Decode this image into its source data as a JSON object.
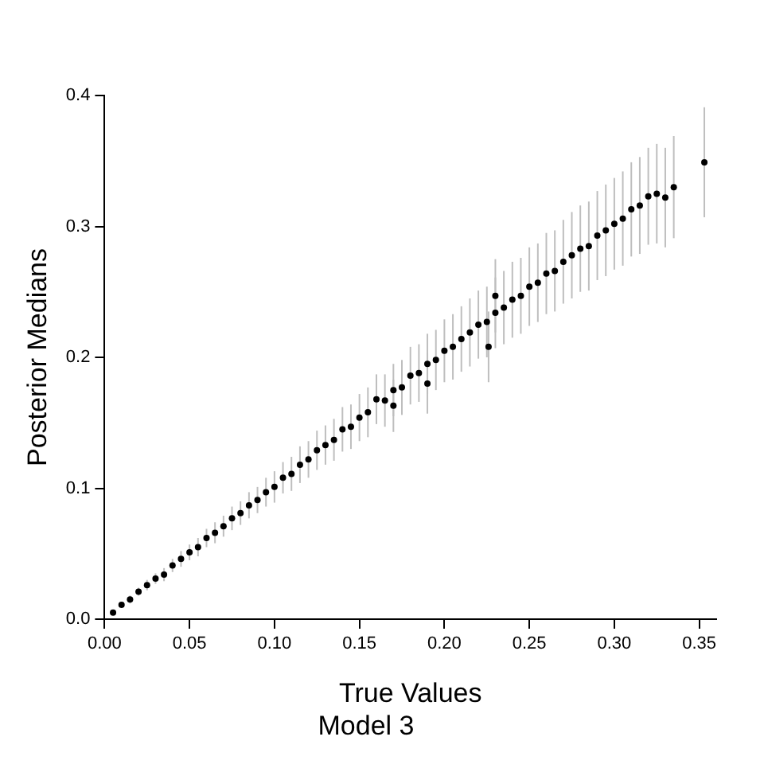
{
  "chart_data": {
    "type": "scatter",
    "title": "Model 3",
    "xlabel": "True Values",
    "ylabel": "Posterior Medians",
    "xlim": [
      0,
      0.36
    ],
    "ylim": [
      0,
      0.4
    ],
    "xticks": [
      {
        "value": 0,
        "label": "0.00"
      },
      {
        "value": 0.05,
        "label": "0.05"
      },
      {
        "value": 0.1,
        "label": "0.10"
      },
      {
        "value": 0.15,
        "label": "0.15"
      },
      {
        "value": 0.2,
        "label": "0.20"
      },
      {
        "value": 0.25,
        "label": "0.25"
      },
      {
        "value": 0.3,
        "label": "0.30"
      },
      {
        "value": 0.35,
        "label": "0.35"
      }
    ],
    "yticks": [
      {
        "value": 0,
        "label": "0.0"
      },
      {
        "value": 0.1,
        "label": "0.1"
      },
      {
        "value": 0.2,
        "label": "0.2"
      },
      {
        "value": 0.3,
        "label": "0.3"
      },
      {
        "value": 0.4,
        "label": "0.4"
      }
    ],
    "grid": false,
    "legend": false,
    "marker": "circle",
    "series": [
      {
        "color": "#000000",
        "x": [
          0.005,
          0.01,
          0.015,
          0.02,
          0.025,
          0.03,
          0.035,
          0.04,
          0.045,
          0.05,
          0.055,
          0.06,
          0.065,
          0.07,
          0.075,
          0.08,
          0.085,
          0.09,
          0.095,
          0.1,
          0.105,
          0.11,
          0.115,
          0.12,
          0.125,
          0.13,
          0.135,
          0.14,
          0.145,
          0.15,
          0.155,
          0.16,
          0.165,
          0.17,
          0.175,
          0.18,
          0.185,
          0.19,
          0.195,
          0.2,
          0.205,
          0.21,
          0.215,
          0.22,
          0.225,
          0.23,
          0.235,
          0.24,
          0.245,
          0.25,
          0.255,
          0.26,
          0.265,
          0.27,
          0.275,
          0.28,
          0.285,
          0.29,
          0.295,
          0.3,
          0.305,
          0.31,
          0.315,
          0.32,
          0.325,
          0.33,
          0.335,
          0.353,
          0.226,
          0.19,
          0.23,
          0.17
        ],
        "values": [
          0.005,
          0.011,
          0.015,
          0.021,
          0.026,
          0.031,
          0.034,
          0.041,
          0.046,
          0.051,
          0.055,
          0.062,
          0.066,
          0.071,
          0.077,
          0.081,
          0.087,
          0.091,
          0.097,
          0.101,
          0.108,
          0.111,
          0.118,
          0.122,
          0.129,
          0.133,
          0.137,
          0.145,
          0.147,
          0.154,
          0.158,
          0.168,
          0.167,
          0.175,
          0.177,
          0.186,
          0.188,
          0.195,
          0.198,
          0.205,
          0.208,
          0.214,
          0.219,
          0.225,
          0.227,
          0.234,
          0.238,
          0.244,
          0.247,
          0.254,
          0.257,
          0.264,
          0.266,
          0.273,
          0.278,
          0.283,
          0.285,
          0.293,
          0.297,
          0.302,
          0.306,
          0.313,
          0.316,
          0.323,
          0.325,
          0.322,
          0.33,
          0.349,
          0.208,
          0.18,
          0.247,
          0.163
        ],
        "errors": [
          0.001,
          0.002,
          0.003,
          0.003,
          0.004,
          0.004,
          0.005,
          0.005,
          0.006,
          0.006,
          0.007,
          0.007,
          0.008,
          0.008,
          0.009,
          0.009,
          0.01,
          0.01,
          0.011,
          0.012,
          0.012,
          0.013,
          0.014,
          0.014,
          0.015,
          0.015,
          0.016,
          0.017,
          0.017,
          0.018,
          0.019,
          0.019,
          0.02,
          0.02,
          0.021,
          0.022,
          0.022,
          0.023,
          0.023,
          0.024,
          0.025,
          0.025,
          0.026,
          0.026,
          0.027,
          0.027,
          0.028,
          0.029,
          0.029,
          0.03,
          0.03,
          0.031,
          0.031,
          0.032,
          0.033,
          0.033,
          0.034,
          0.034,
          0.035,
          0.035,
          0.036,
          0.036,
          0.037,
          0.037,
          0.038,
          0.038,
          0.039,
          0.042,
          0.027,
          0.023,
          0.028,
          0.02
        ]
      }
    ]
  }
}
